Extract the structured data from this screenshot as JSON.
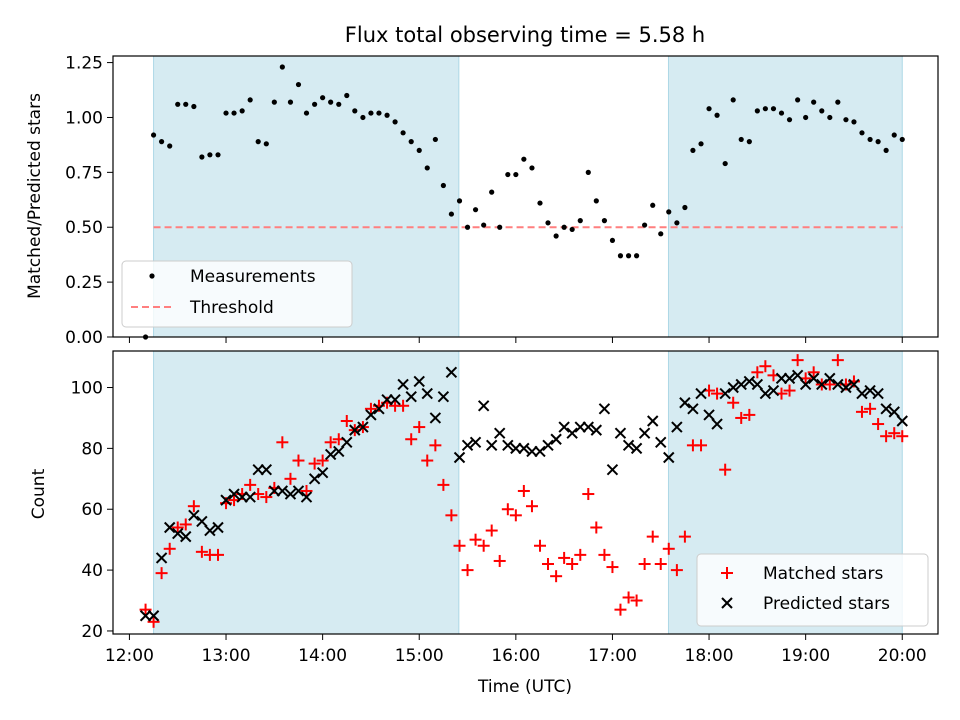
{
  "chart_data": [
    {
      "type": "scatter",
      "title": "Flux total observing time = 5.58 h",
      "xlabel": "",
      "ylabel": "Matched/Predicted stars",
      "ylim": [
        0,
        1.28
      ],
      "yticks": [
        0,
        0.25,
        0.5,
        0.75,
        1.0,
        1.25
      ],
      "ytick_labels": [
        "0.00",
        "0.25",
        "0.50",
        "0.75",
        "1.00",
        "1.25"
      ],
      "legend": {
        "position": "lower-left",
        "entries": [
          "Measurements",
          "Threshold"
        ]
      },
      "colors": {
        "measurements": "#000000",
        "threshold": "#ff7f7f",
        "shade": "#add8e6"
      },
      "threshold": 0.5,
      "series": [
        {
          "name": "Measurements",
          "x": [
            12.167,
            12.25,
            12.333,
            12.417,
            12.5,
            12.583,
            12.667,
            12.75,
            12.833,
            12.917,
            13.0,
            13.083,
            13.167,
            13.25,
            13.333,
            13.417,
            13.5,
            13.583,
            13.667,
            13.75,
            13.833,
            13.917,
            14.0,
            14.083,
            14.167,
            14.25,
            14.333,
            14.417,
            14.5,
            14.583,
            14.667,
            14.75,
            14.833,
            14.917,
            15.0,
            15.083,
            15.167,
            15.25,
            15.333,
            15.417,
            15.5,
            15.583,
            15.667,
            15.75,
            15.833,
            15.917,
            16.0,
            16.083,
            16.167,
            16.25,
            16.333,
            16.417,
            16.5,
            16.583,
            16.667,
            16.75,
            16.833,
            16.917,
            17.0,
            17.083,
            17.167,
            17.25,
            17.333,
            17.417,
            17.5,
            17.583,
            17.667,
            17.75,
            17.833,
            17.917,
            18.0,
            18.083,
            18.167,
            18.25,
            18.333,
            18.417,
            18.5,
            18.583,
            18.667,
            18.75,
            18.833,
            18.917,
            19.0,
            19.083,
            19.167,
            19.25,
            19.333,
            19.417,
            19.5,
            19.583,
            19.667,
            19.75,
            19.833,
            19.917,
            20.0
          ],
          "y": [
            0.0,
            0.92,
            0.89,
            0.87,
            1.06,
            1.06,
            1.05,
            0.82,
            0.83,
            0.83,
            1.02,
            1.02,
            1.03,
            1.08,
            0.89,
            0.88,
            1.07,
            1.23,
            1.07,
            1.15,
            1.02,
            1.06,
            1.09,
            1.07,
            1.06,
            1.1,
            1.03,
            1.0,
            1.02,
            1.02,
            1.01,
            0.98,
            0.93,
            0.89,
            0.85,
            0.77,
            0.9,
            0.69,
            0.56,
            0.62,
            0.5,
            0.58,
            0.51,
            0.66,
            0.5,
            0.74,
            0.74,
            0.81,
            0.77,
            0.61,
            0.52,
            0.46,
            0.5,
            0.49,
            0.53,
            0.75,
            0.62,
            0.53,
            0.44,
            0.37,
            0.37,
            0.37,
            0.51,
            0.6,
            0.47,
            0.57,
            0.52,
            0.59,
            0.85,
            0.88,
            1.04,
            1.01,
            0.79,
            1.08,
            0.9,
            0.89,
            1.03,
            1.04,
            1.04,
            1.02,
            0.99,
            1.08,
            1.0,
            1.07,
            1.03,
            1.0,
            1.07,
            0.99,
            0.98,
            0.93,
            0.9,
            0.89,
            0.85,
            0.92,
            0.9
          ]
        },
        {
          "name": "Threshold",
          "x": [
            12.25,
            20.0
          ],
          "y": [
            0.5,
            0.5
          ]
        }
      ]
    },
    {
      "type": "scatter",
      "title": "",
      "xlabel": "Time (UTC)",
      "ylabel": "Count",
      "ylim": [
        19,
        112
      ],
      "yticks": [
        20,
        40,
        60,
        80,
        100
      ],
      "xlim": [
        11.83,
        20.37
      ],
      "xticks": [
        12,
        13,
        14,
        15,
        16,
        17,
        18,
        19,
        20
      ],
      "xtick_labels": [
        "12:00",
        "13:00",
        "14:00",
        "15:00",
        "16:00",
        "17:00",
        "18:00",
        "19:00",
        "20:00"
      ],
      "legend": {
        "position": "lower-right",
        "entries": [
          "Matched stars",
          "Predicted stars"
        ]
      },
      "colors": {
        "matched": "#ff0000",
        "predicted": "#000000",
        "shade": "#add8e6"
      },
      "shaded_intervals": [
        [
          12.25,
          15.41
        ],
        [
          17.58,
          20.0
        ]
      ],
      "series": [
        {
          "name": "Matched stars",
          "x": [
            12.167,
            12.25,
            12.333,
            12.417,
            12.5,
            12.583,
            12.667,
            12.75,
            12.833,
            12.917,
            13.0,
            13.083,
            13.167,
            13.25,
            13.333,
            13.417,
            13.5,
            13.583,
            13.667,
            13.75,
            13.833,
            13.917,
            14.0,
            14.083,
            14.167,
            14.25,
            14.333,
            14.417,
            14.5,
            14.583,
            14.667,
            14.75,
            14.833,
            14.917,
            15.0,
            15.083,
            15.167,
            15.25,
            15.333,
            15.417,
            15.5,
            15.583,
            15.667,
            15.75,
            15.833,
            15.917,
            16.0,
            16.083,
            16.167,
            16.25,
            16.333,
            16.417,
            16.5,
            16.583,
            16.667,
            16.75,
            16.833,
            16.917,
            17.0,
            17.083,
            17.167,
            17.25,
            17.333,
            17.417,
            17.5,
            17.583,
            17.667,
            17.75,
            17.833,
            17.917,
            18.0,
            18.083,
            18.167,
            18.25,
            18.333,
            18.417,
            18.5,
            18.583,
            18.667,
            18.75,
            18.833,
            18.917,
            19.0,
            19.083,
            19.167,
            19.25,
            19.333,
            19.417,
            19.5,
            19.583,
            19.667,
            19.75,
            19.833,
            19.917,
            20.0
          ],
          "y": [
            27,
            23,
            39,
            47,
            54,
            55,
            61,
            46,
            45,
            45,
            62,
            63,
            65,
            68,
            65,
            64,
            67,
            82,
            70,
            76,
            66,
            75,
            76,
            82,
            83,
            89,
            86,
            87,
            93,
            94,
            95,
            94,
            94,
            83,
            87,
            76,
            81,
            68,
            58,
            48,
            40,
            50,
            48,
            53,
            43,
            60,
            58,
            66,
            61,
            48,
            42,
            38,
            44,
            42,
            45,
            65,
            54,
            45,
            41,
            27,
            31,
            30,
            42,
            51,
            42,
            47,
            40,
            51,
            81,
            81,
            99,
            98,
            73,
            95,
            90,
            91,
            105,
            107,
            104,
            98,
            99,
            109,
            103,
            105,
            101,
            101,
            109,
            101,
            102,
            92,
            93,
            88,
            84,
            85,
            84
          ]
        },
        {
          "name": "Predicted stars",
          "x": [
            12.167,
            12.25,
            12.333,
            12.417,
            12.5,
            12.583,
            12.667,
            12.75,
            12.833,
            12.917,
            13.0,
            13.083,
            13.167,
            13.25,
            13.333,
            13.417,
            13.5,
            13.583,
            13.667,
            13.75,
            13.833,
            13.917,
            14.0,
            14.083,
            14.167,
            14.25,
            14.333,
            14.417,
            14.5,
            14.583,
            14.667,
            14.75,
            14.833,
            14.917,
            15.0,
            15.083,
            15.167,
            15.25,
            15.333,
            15.417,
            15.5,
            15.583,
            15.667,
            15.75,
            15.833,
            15.917,
            16.0,
            16.083,
            16.167,
            16.25,
            16.333,
            16.417,
            16.5,
            16.583,
            16.667,
            16.75,
            16.833,
            16.917,
            17.0,
            17.083,
            17.167,
            17.25,
            17.333,
            17.417,
            17.5,
            17.583,
            17.667,
            17.75,
            17.833,
            17.917,
            18.0,
            18.083,
            18.167,
            18.25,
            18.333,
            18.417,
            18.5,
            18.583,
            18.667,
            18.75,
            18.833,
            18.917,
            19.0,
            19.083,
            19.167,
            19.25,
            19.333,
            19.417,
            19.5,
            19.583,
            19.667,
            19.75,
            19.833,
            19.917,
            20.0
          ],
          "y": [
            25,
            25,
            44,
            54,
            52,
            51,
            58,
            56,
            53,
            54,
            63,
            65,
            64,
            64,
            73,
            73,
            66,
            66,
            65,
            66,
            64,
            70,
            72,
            78,
            79,
            82,
            86,
            87,
            91,
            93,
            96,
            96,
            101,
            97,
            102,
            98,
            90,
            97,
            105,
            77,
            81,
            82,
            94,
            81,
            85,
            81,
            80,
            80,
            79,
            79,
            81,
            83,
            87,
            85,
            87,
            87,
            86,
            93,
            73,
            85,
            81,
            80,
            85,
            89,
            82,
            77,
            87,
            95,
            93,
            98,
            91,
            88,
            98,
            100,
            101,
            102,
            101,
            98,
            99,
            103,
            103,
            104,
            101,
            103,
            101,
            103,
            101,
            100,
            101,
            98,
            99,
            98,
            93,
            92,
            89
          ]
        }
      ]
    }
  ]
}
